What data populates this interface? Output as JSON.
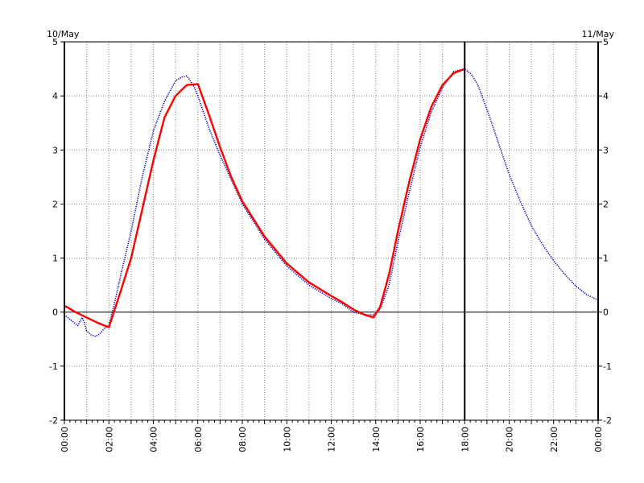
{
  "chart_data": {
    "type": "line",
    "title": "",
    "xlabel": "",
    "ylabel": "",
    "date_left": "10/May",
    "date_right": "11/May",
    "x_tick_labels": [
      "00:00",
      "02:00",
      "04:00",
      "06:00",
      "08:00",
      "10:00",
      "12:00",
      "14:00",
      "16:00",
      "18:00",
      "20:00",
      "22:00",
      "00:00"
    ],
    "y_tick_labels": [
      "5",
      "4",
      "3",
      "2",
      "1",
      "0",
      "-1",
      "-2"
    ],
    "ylim": [
      -2,
      5
    ],
    "xlim_hours": [
      0,
      24
    ],
    "grid": true,
    "grid_style": "dotted",
    "zero_line": true,
    "current_time_marker_hours": 18,
    "series": [
      {
        "color": "#0000aa",
        "style": "dotted",
        "x_hours": [
          0,
          0.3,
          0.6,
          0.8,
          0.9,
          1.0,
          1.2,
          1.4,
          1.6,
          1.8,
          2.0,
          2.3,
          2.6,
          3.0,
          3.5,
          4.0,
          4.5,
          5.0,
          5.3,
          5.5,
          5.6,
          5.7,
          5.8,
          6.0,
          6.5,
          7.0,
          7.5,
          8.0,
          9.0,
          10.0,
          11.0,
          12.0,
          12.5,
          13.0,
          13.3,
          13.6,
          13.9,
          14.2,
          14.6,
          15.0,
          15.5,
          16.0,
          16.5,
          17.0,
          17.5,
          18.0,
          18.3,
          18.6,
          19.0,
          19.5,
          20.0,
          20.5,
          21.0,
          21.5,
          22.0,
          22.5,
          23.0,
          23.5,
          24.0
        ],
        "y": [
          -0.05,
          -0.15,
          -0.25,
          -0.1,
          -0.2,
          -0.35,
          -0.42,
          -0.45,
          -0.4,
          -0.3,
          -0.25,
          0.25,
          0.8,
          1.5,
          2.5,
          3.35,
          3.9,
          4.28,
          4.35,
          4.37,
          4.32,
          4.25,
          4.2,
          4.0,
          3.4,
          2.9,
          2.45,
          2.0,
          1.35,
          0.85,
          0.5,
          0.25,
          0.15,
          0.0,
          -0.03,
          -0.05,
          -0.05,
          0.05,
          0.5,
          1.3,
          2.2,
          3.05,
          3.7,
          4.15,
          4.45,
          4.5,
          4.4,
          4.2,
          3.75,
          3.15,
          2.55,
          2.05,
          1.6,
          1.25,
          0.95,
          0.7,
          0.48,
          0.32,
          0.22
        ]
      },
      {
        "color": "#ff0000",
        "style": "solid",
        "x_hours": [
          0,
          0.5,
          1.0,
          1.5,
          2.0,
          2.5,
          3.0,
          3.5,
          4.0,
          4.5,
          5.0,
          5.5,
          6.0,
          6.5,
          7.0,
          7.5,
          8.0,
          9.0,
          10.0,
          11.0,
          12.0,
          12.5,
          13.0,
          13.5,
          13.9,
          14.2,
          14.6,
          15.0,
          15.5,
          16.0,
          16.5,
          17.0,
          17.5,
          18.0
        ],
        "y": [
          0.12,
          0.0,
          -0.1,
          -0.2,
          -0.28,
          0.35,
          1.0,
          1.9,
          2.8,
          3.6,
          4.0,
          4.2,
          4.22,
          3.65,
          3.05,
          2.5,
          2.05,
          1.4,
          0.9,
          0.55,
          0.3,
          0.18,
          0.05,
          -0.05,
          -0.1,
          0.1,
          0.7,
          1.5,
          2.4,
          3.2,
          3.8,
          4.2,
          4.42,
          4.5
        ]
      }
    ]
  }
}
